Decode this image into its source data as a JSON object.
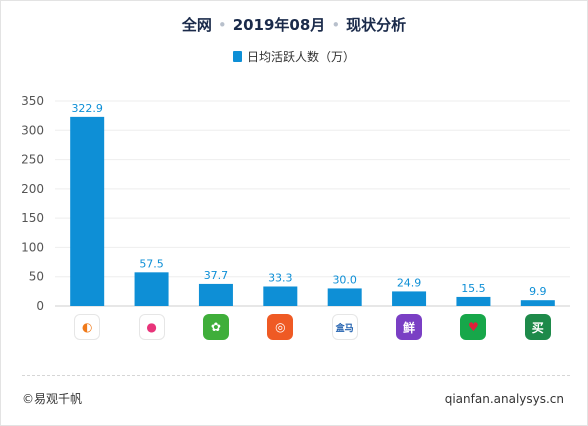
{
  "title": {
    "part1": "全网",
    "sep": "•",
    "part2": "2019年08月",
    "part3": "现状分析"
  },
  "chart_data": {
    "type": "bar",
    "title": "全网 • 2019年08月 • 现状分析",
    "series": [
      {
        "name": "日均活跃人数（万）",
        "values": [
          322.9,
          57.5,
          37.7,
          33.3,
          30.0,
          24.9,
          15.5,
          9.9
        ]
      }
    ],
    "value_labels": [
      "322.9",
      "57.5",
      "37.7",
      "33.3",
      "30.0",
      "24.9",
      "15.5",
      "9.9"
    ],
    "y_ticks": [
      0,
      50,
      100,
      150,
      200,
      250,
      300,
      350
    ],
    "ylim": [
      0,
      350
    ],
    "bar_color": "#0e8fd6",
    "legend_position": "top-center",
    "grid": true,
    "categories": [
      "app-1",
      "app-2",
      "app-3",
      "app-4",
      "app-5",
      "app-6",
      "app-7",
      "app-8"
    ],
    "category_icons": [
      {
        "name": "flame-app-icon",
        "glyph": "◐",
        "bg": "#ffffff",
        "fg": "#f07a1a"
      },
      {
        "name": "pink-circle-app-icon",
        "glyph": "●",
        "bg": "#ffffff",
        "fg": "#e8347a"
      },
      {
        "name": "green-farm-app-icon",
        "glyph": "✿",
        "bg": "#3fae3a",
        "fg": "#ffffff"
      },
      {
        "name": "orange-ring-app-icon",
        "glyph": "◎",
        "bg": "#ef5a24",
        "fg": "#ffffff"
      },
      {
        "name": "hema-app-icon",
        "glyph": "盒马",
        "bg": "#ffffff",
        "fg": "#1f5fae"
      },
      {
        "name": "purple-green-app-icon",
        "glyph": "鲜",
        "bg": "#7a3fc4",
        "fg": "#ffffff"
      },
      {
        "name": "strawberry-app-icon",
        "glyph": "♥",
        "bg": "#17a74a",
        "fg": "#e0203a"
      },
      {
        "name": "mai-app-icon",
        "glyph": "买",
        "bg": "#1e8a4a",
        "fg": "#ffffff"
      }
    ]
  },
  "footer": {
    "copyright": "©易观千帆",
    "website": "qianfan.analysys.cn"
  }
}
